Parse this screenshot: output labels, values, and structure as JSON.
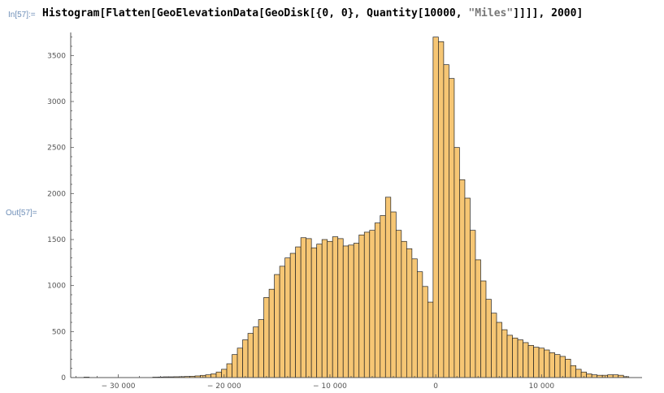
{
  "notebook": {
    "input_label": "In[57]:=",
    "output_label": "Out[57]=",
    "input_parts": {
      "part1": "Histogram[Flatten[GeoElevationData[GeoDisk[{0, 0}, Quantity[10000, ",
      "string_literal": "\"Miles\"",
      "part2": "]]]], 2000]"
    }
  },
  "colors": {
    "bar_fill": "#f6c674",
    "bar_stroke": "#222222",
    "axis": "#555555",
    "cell_label": "#6f8fb8"
  },
  "chart_data": {
    "type": "bar",
    "bin_width": 500,
    "xlim": [
      -34500,
      19500
    ],
    "ylim": [
      0,
      3750
    ],
    "xticks": [
      {
        "value": -30000,
        "label": "− 30 000"
      },
      {
        "value": -20000,
        "label": "− 20 000"
      },
      {
        "value": -10000,
        "label": "− 10 000"
      },
      {
        "value": 0,
        "label": "0"
      },
      {
        "value": 10000,
        "label": "10 000"
      }
    ],
    "yticks": [
      {
        "value": 0,
        "label": "0"
      },
      {
        "value": 500,
        "label": "500"
      },
      {
        "value": 1000,
        "label": "1000"
      },
      {
        "value": 1500,
        "label": "1500"
      },
      {
        "value": 2000,
        "label": "2000"
      },
      {
        "value": 2500,
        "label": "2500"
      },
      {
        "value": 3000,
        "label": "3000"
      },
      {
        "value": 3500,
        "label": "3500"
      }
    ],
    "bins": [
      {
        "x": -33000,
        "y": 5
      },
      {
        "x": -26500,
        "y": 5
      },
      {
        "x": -26000,
        "y": 6
      },
      {
        "x": -25500,
        "y": 8
      },
      {
        "x": -25000,
        "y": 8
      },
      {
        "x": -24500,
        "y": 9
      },
      {
        "x": -24000,
        "y": 10
      },
      {
        "x": -23500,
        "y": 12
      },
      {
        "x": -23000,
        "y": 14
      },
      {
        "x": -22500,
        "y": 18
      },
      {
        "x": -22000,
        "y": 24
      },
      {
        "x": -21500,
        "y": 30
      },
      {
        "x": -21000,
        "y": 40
      },
      {
        "x": -20500,
        "y": 60
      },
      {
        "x": -20000,
        "y": 90
      },
      {
        "x": -19500,
        "y": 150
      },
      {
        "x": -19000,
        "y": 250
      },
      {
        "x": -18500,
        "y": 320
      },
      {
        "x": -18000,
        "y": 410
      },
      {
        "x": -17500,
        "y": 480
      },
      {
        "x": -17000,
        "y": 550
      },
      {
        "x": -16500,
        "y": 630
      },
      {
        "x": -16000,
        "y": 870
      },
      {
        "x": -15500,
        "y": 960
      },
      {
        "x": -15000,
        "y": 1120
      },
      {
        "x": -14500,
        "y": 1210
      },
      {
        "x": -14000,
        "y": 1300
      },
      {
        "x": -13500,
        "y": 1350
      },
      {
        "x": -13000,
        "y": 1420
      },
      {
        "x": -12500,
        "y": 1520
      },
      {
        "x": -12000,
        "y": 1510
      },
      {
        "x": -11500,
        "y": 1410
      },
      {
        "x": -11000,
        "y": 1450
      },
      {
        "x": -10500,
        "y": 1500
      },
      {
        "x": -10000,
        "y": 1480
      },
      {
        "x": -9500,
        "y": 1530
      },
      {
        "x": -9000,
        "y": 1510
      },
      {
        "x": -8500,
        "y": 1430
      },
      {
        "x": -8000,
        "y": 1440
      },
      {
        "x": -7500,
        "y": 1460
      },
      {
        "x": -7000,
        "y": 1550
      },
      {
        "x": -6500,
        "y": 1580
      },
      {
        "x": -6000,
        "y": 1600
      },
      {
        "x": -5500,
        "y": 1680
      },
      {
        "x": -5000,
        "y": 1760
      },
      {
        "x": -4500,
        "y": 1960
      },
      {
        "x": -4000,
        "y": 1800
      },
      {
        "x": -3500,
        "y": 1600
      },
      {
        "x": -3000,
        "y": 1480
      },
      {
        "x": -2500,
        "y": 1400
      },
      {
        "x": -2000,
        "y": 1290
      },
      {
        "x": -1500,
        "y": 1150
      },
      {
        "x": -1000,
        "y": 990
      },
      {
        "x": -500,
        "y": 820
      },
      {
        "x": 0,
        "y": 3700
      },
      {
        "x": 500,
        "y": 3650
      },
      {
        "x": 1000,
        "y": 3400
      },
      {
        "x": 1500,
        "y": 3250
      },
      {
        "x": 2000,
        "y": 2500
      },
      {
        "x": 2500,
        "y": 2150
      },
      {
        "x": 3000,
        "y": 1950
      },
      {
        "x": 3500,
        "y": 1600
      },
      {
        "x": 4000,
        "y": 1280
      },
      {
        "x": 4500,
        "y": 1050
      },
      {
        "x": 5000,
        "y": 850
      },
      {
        "x": 5500,
        "y": 700
      },
      {
        "x": 6000,
        "y": 600
      },
      {
        "x": 6500,
        "y": 520
      },
      {
        "x": 7000,
        "y": 460
      },
      {
        "x": 7500,
        "y": 430
      },
      {
        "x": 8000,
        "y": 410
      },
      {
        "x": 8500,
        "y": 380
      },
      {
        "x": 9000,
        "y": 350
      },
      {
        "x": 9500,
        "y": 330
      },
      {
        "x": 10000,
        "y": 320
      },
      {
        "x": 10500,
        "y": 300
      },
      {
        "x": 11000,
        "y": 270
      },
      {
        "x": 11500,
        "y": 250
      },
      {
        "x": 12000,
        "y": 230
      },
      {
        "x": 12500,
        "y": 200
      },
      {
        "x": 13000,
        "y": 130
      },
      {
        "x": 13500,
        "y": 90
      },
      {
        "x": 14000,
        "y": 60
      },
      {
        "x": 14500,
        "y": 40
      },
      {
        "x": 15000,
        "y": 30
      },
      {
        "x": 15500,
        "y": 25
      },
      {
        "x": 16000,
        "y": 25
      },
      {
        "x": 16500,
        "y": 30
      },
      {
        "x": 17000,
        "y": 30
      },
      {
        "x": 17500,
        "y": 25
      },
      {
        "x": 18000,
        "y": 10
      }
    ]
  }
}
